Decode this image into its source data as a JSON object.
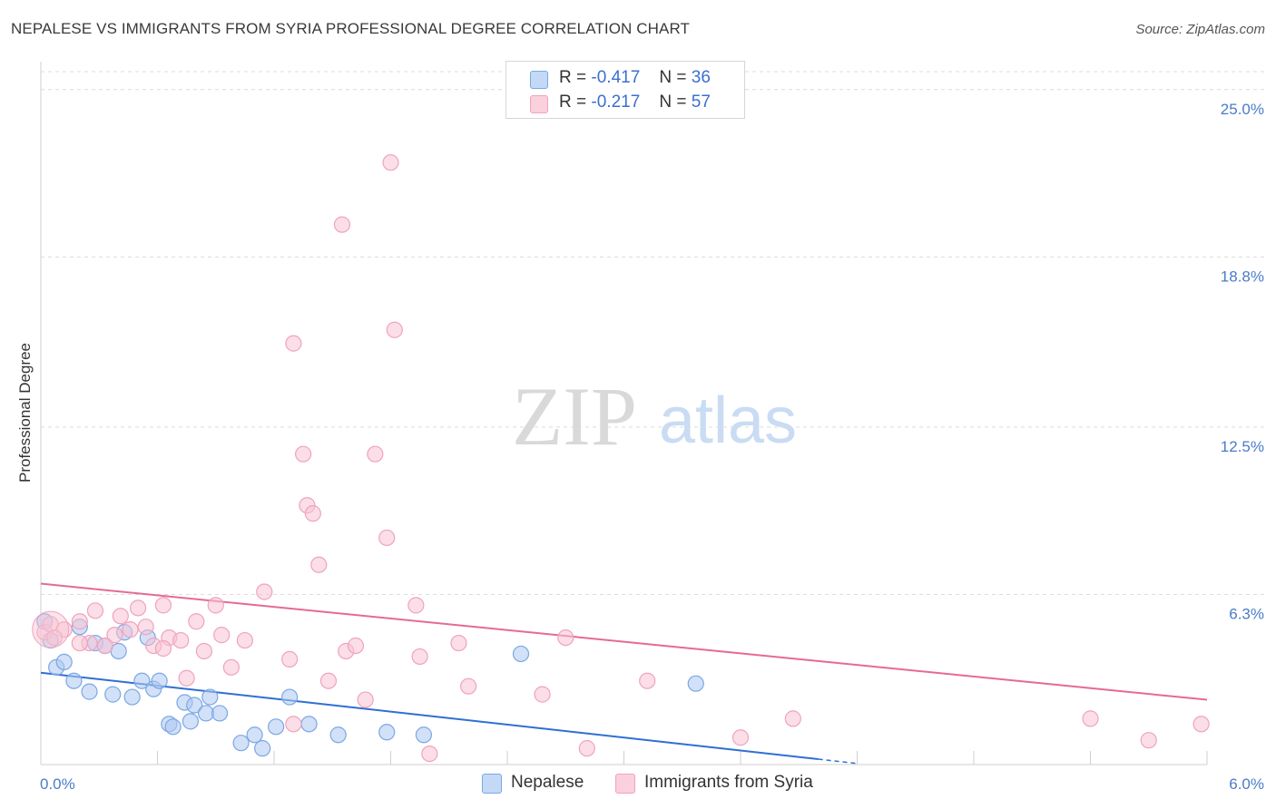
{
  "title": "NEPALESE VS IMMIGRANTS FROM SYRIA PROFESSIONAL DEGREE CORRELATION CHART",
  "source": "Source: ZipAtlas.com",
  "watermark": {
    "zip": "ZIP",
    "atlas": "atlas"
  },
  "legend": {
    "r_label": "R =",
    "n_label": "N =",
    "rows": [
      {
        "r": "-0.417",
        "n": "36"
      },
      {
        "r": "-0.217",
        "n": "57"
      }
    ]
  },
  "chart_data": {
    "type": "scatter",
    "title": "NEPALESE VS IMMIGRANTS FROM SYRIA PROFESSIONAL DEGREE CORRELATION CHART",
    "xlabel": "",
    "ylabel": "Professional Degree",
    "xlim": [
      0,
      6.0
    ],
    "ylim": [
      0,
      25.9
    ],
    "x_tick_labels": [
      "0.0%",
      "6.0%"
    ],
    "y_ticks": [
      {
        "value": 6.3,
        "label": "6.3%"
      },
      {
        "value": 12.5,
        "label": "12.5%"
      },
      {
        "value": 18.8,
        "label": "18.8%"
      },
      {
        "value": 25.0,
        "label": "25.0%"
      }
    ],
    "grid": true,
    "legend_position": "top-center",
    "series": [
      {
        "name": "Nepalese",
        "color": "#7aa7e6",
        "fill": "#adc9f1",
        "trend": {
          "x0": 0.0,
          "y0": 3.4,
          "x1": 4.0,
          "y1": 0.2,
          "color": "#2f6fd2"
        },
        "points": [
          [
            0.02,
            5.3
          ],
          [
            0.05,
            4.6
          ],
          [
            0.08,
            3.6
          ],
          [
            0.12,
            3.8
          ],
          [
            0.17,
            3.1
          ],
          [
            0.2,
            5.1
          ],
          [
            0.25,
            2.7
          ],
          [
            0.28,
            4.5
          ],
          [
            0.33,
            4.4
          ],
          [
            0.37,
            2.6
          ],
          [
            0.4,
            4.2
          ],
          [
            0.43,
            4.9
          ],
          [
            0.47,
            2.5
          ],
          [
            0.52,
            3.1
          ],
          [
            0.55,
            4.7
          ],
          [
            0.58,
            2.8
          ],
          [
            0.61,
            3.1
          ],
          [
            0.66,
            1.5
          ],
          [
            0.68,
            1.4
          ],
          [
            0.74,
            2.3
          ],
          [
            0.77,
            1.6
          ],
          [
            0.79,
            2.2
          ],
          [
            0.85,
            1.9
          ],
          [
            0.87,
            2.5
          ],
          [
            0.92,
            1.9
          ],
          [
            1.03,
            0.8
          ],
          [
            1.1,
            1.1
          ],
          [
            1.14,
            0.6
          ],
          [
            1.21,
            1.4
          ],
          [
            1.28,
            2.5
          ],
          [
            1.38,
            1.5
          ],
          [
            1.53,
            1.1
          ],
          [
            1.78,
            1.2
          ],
          [
            1.97,
            1.1
          ],
          [
            2.47,
            4.1
          ],
          [
            3.37,
            3.0
          ]
        ]
      },
      {
        "name": "Immigrants from Syria",
        "color": "#f0a3bc",
        "fill": "#f7c3d3",
        "trend": {
          "x0": 0.0,
          "y0": 6.7,
          "x1": 6.0,
          "y1": 2.4,
          "color": "#e56a95"
        },
        "points": [
          [
            0.02,
            4.9
          ],
          [
            0.05,
            5.2
          ],
          [
            0.12,
            5.0
          ],
          [
            0.2,
            5.3
          ],
          [
            0.25,
            4.5
          ],
          [
            0.28,
            5.7
          ],
          [
            0.33,
            4.4
          ],
          [
            0.38,
            4.8
          ],
          [
            0.41,
            5.5
          ],
          [
            0.46,
            5.0
          ],
          [
            0.5,
            5.8
          ],
          [
            0.54,
            5.1
          ],
          [
            0.58,
            4.4
          ],
          [
            0.63,
            5.9
          ],
          [
            0.66,
            4.7
          ],
          [
            0.72,
            4.6
          ],
          [
            0.75,
            3.2
          ],
          [
            0.8,
            5.3
          ],
          [
            0.84,
            4.2
          ],
          [
            0.9,
            5.9
          ],
          [
            0.93,
            4.8
          ],
          [
            0.98,
            3.6
          ],
          [
            1.05,
            4.6
          ],
          [
            1.15,
            6.4
          ],
          [
            1.28,
            3.9
          ],
          [
            1.3,
            1.5
          ],
          [
            1.35,
            11.5
          ],
          [
            1.37,
            9.6
          ],
          [
            1.4,
            9.3
          ],
          [
            1.43,
            7.4
          ],
          [
            1.48,
            3.1
          ],
          [
            1.57,
            4.2
          ],
          [
            1.62,
            4.4
          ],
          [
            1.67,
            2.4
          ],
          [
            1.72,
            11.5
          ],
          [
            1.78,
            8.4
          ],
          [
            1.93,
            5.9
          ],
          [
            1.95,
            4.0
          ],
          [
            2.0,
            0.4
          ],
          [
            2.15,
            4.5
          ],
          [
            2.2,
            2.9
          ],
          [
            2.58,
            2.6
          ],
          [
            2.7,
            4.7
          ],
          [
            2.81,
            0.6
          ],
          [
            3.12,
            3.1
          ],
          [
            3.6,
            1.0
          ],
          [
            3.87,
            1.7
          ],
          [
            5.4,
            1.7
          ],
          [
            5.7,
            0.9
          ],
          [
            5.97,
            1.5
          ],
          [
            1.3,
            15.6
          ],
          [
            1.55,
            20.0
          ],
          [
            1.8,
            22.3
          ],
          [
            1.82,
            16.1
          ],
          [
            0.07,
            4.7
          ],
          [
            0.2,
            4.5
          ],
          [
            0.63,
            4.3
          ]
        ]
      }
    ]
  },
  "bottom_legend": [
    {
      "label": "Nepalese"
    },
    {
      "label": "Immigrants from Syria"
    }
  ],
  "colors": {
    "nepalese_swatch": "#c4d9f6",
    "nepalese_border": "#7aa7e6",
    "syria_swatch": "#fad0dd",
    "syria_border": "#f0a3bc"
  }
}
